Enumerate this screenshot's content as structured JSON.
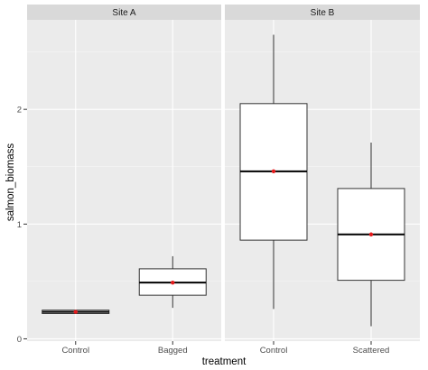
{
  "chart_data": {
    "type": "boxplot",
    "xlabel": "treatment",
    "ylabel": "salmon_biomass",
    "ylim": [
      -0.02,
      2.78
    ],
    "yticks": [
      0,
      1,
      2
    ],
    "grid": true,
    "legend": "none",
    "colors": {
      "panel_bg": "#ebebeb",
      "strip_bg": "#d9d9d9",
      "grid_major": "#ffffff",
      "box_fill": "#ffffff",
      "box_line": "#333333",
      "median": "#000000",
      "mean_point": "#e41a1c",
      "tick_mark": "#333333"
    },
    "panels": [
      {
        "strip": "Site A",
        "categories": [
          "Control",
          "Bagged"
        ],
        "boxes": [
          {
            "category": "Control",
            "min": 0.22,
            "q1": 0.22,
            "median": 0.235,
            "q3": 0.25,
            "max": 0.25,
            "mean": 0.235
          },
          {
            "category": "Bagged",
            "min": 0.27,
            "q1": 0.38,
            "median": 0.49,
            "q3": 0.61,
            "max": 0.72,
            "mean": 0.49
          }
        ]
      },
      {
        "strip": "Site B",
        "categories": [
          "Control",
          "Scattered"
        ],
        "boxes": [
          {
            "category": "Control",
            "min": 0.26,
            "q1": 0.86,
            "median": 1.46,
            "q3": 2.05,
            "max": 2.65,
            "mean": 1.46
          },
          {
            "category": "Scattered",
            "min": 0.11,
            "q1": 0.51,
            "median": 0.91,
            "q3": 1.31,
            "max": 1.71,
            "mean": 0.91
          }
        ]
      }
    ]
  }
}
